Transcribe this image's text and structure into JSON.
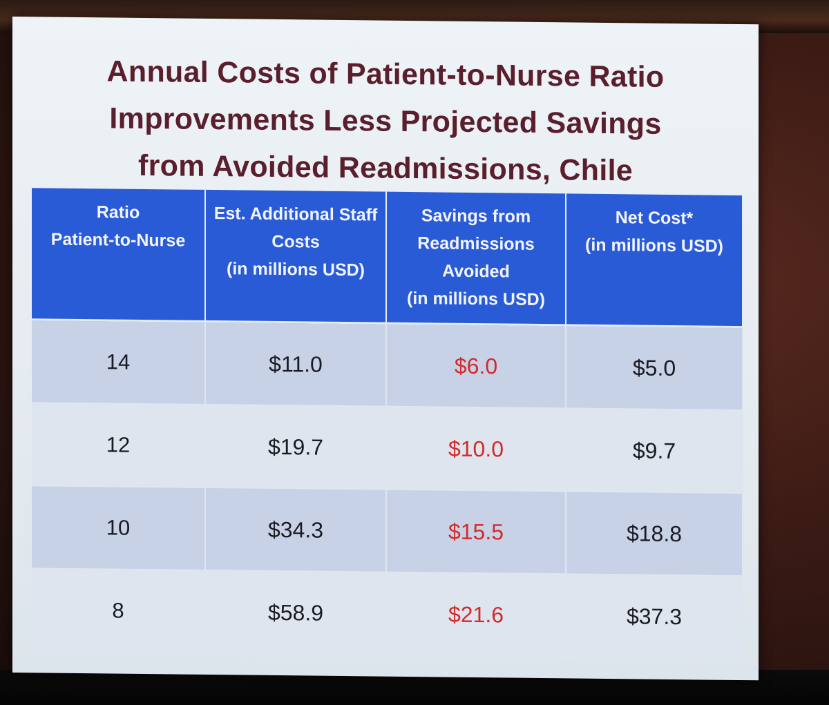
{
  "slide": {
    "title_lines": [
      "Annual Costs of Patient-to-Nurse Ratio",
      "Improvements Less Projected Savings",
      "from Avoided Readmissions, Chile"
    ]
  },
  "table": {
    "headers": [
      [
        "Ratio",
        "Patient-to-Nurse"
      ],
      [
        "Est. Additional Staff",
        "Costs",
        "(in millions USD)"
      ],
      [
        "Savings from",
        "Readmissions",
        "Avoided",
        "(in millions USD)"
      ],
      [
        "Net Cost*",
        "(in millions USD)"
      ]
    ],
    "rows": [
      {
        "ratio": "14",
        "staff_costs": "$11.0",
        "savings": "$6.0",
        "net_cost": "$5.0"
      },
      {
        "ratio": "12",
        "staff_costs": "$19.7",
        "savings": "$10.0",
        "net_cost": "$9.7"
      },
      {
        "ratio": "10",
        "staff_costs": "$34.3",
        "savings": "$15.5",
        "net_cost": "$18.8"
      },
      {
        "ratio": "8",
        "staff_costs": "$58.9",
        "savings": "$21.6",
        "net_cost": "$37.3"
      }
    ]
  },
  "colors": {
    "title": "#5a1e2c",
    "header_bg": "#2a5bd6",
    "savings_text": "#d22a2a"
  }
}
